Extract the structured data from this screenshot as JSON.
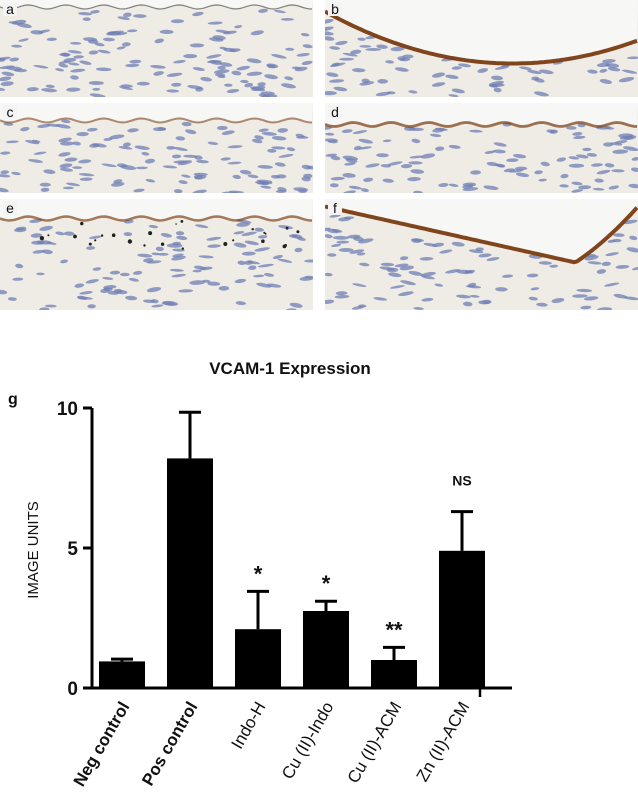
{
  "panels": [
    {
      "letter": "a"
    },
    {
      "letter": "b"
    },
    {
      "letter": "c"
    },
    {
      "letter": "d"
    },
    {
      "letter": "e"
    },
    {
      "letter": "f"
    }
  ],
  "colors": {
    "tissue": "#efece6",
    "nuclei": "#6f7fb3",
    "stain": "#7a3c12",
    "lumen": "#f7f7f5",
    "bar": "#000000"
  },
  "chart_data": {
    "type": "bar",
    "panel_label": "g",
    "title": "VCAM-1 Expression",
    "xlabel": "",
    "ylabel": "IMAGE UNITS",
    "ylim": [
      0,
      10
    ],
    "yticks": [
      0,
      5,
      10
    ],
    "ytick_labels": [
      "0",
      "5",
      "10"
    ],
    "categories": [
      "Neg control",
      "Pos control",
      "Indo-H",
      "Cu (II)-Indo",
      "Cu (II)-ACM",
      "Zn (II)-ACM"
    ],
    "bold_categories": [
      true,
      true,
      false,
      false,
      false,
      false
    ],
    "values": [
      0.95,
      8.2,
      2.1,
      2.75,
      1.0,
      4.9
    ],
    "errors": [
      0.08,
      1.65,
      1.35,
      0.35,
      0.45,
      1.4
    ],
    "annotations": [
      "",
      "",
      "*",
      "*",
      "**",
      "NS"
    ]
  }
}
